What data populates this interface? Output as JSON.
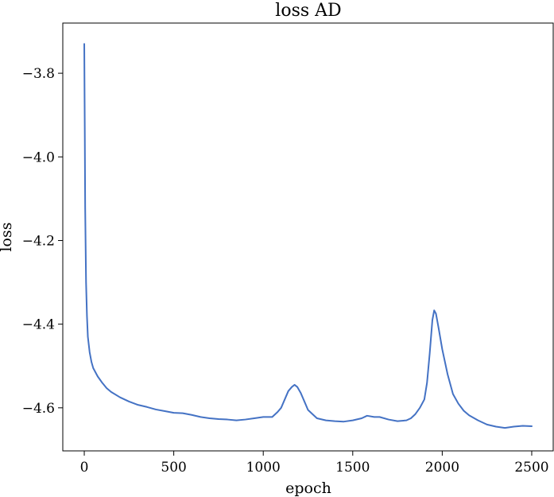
{
  "chart_data": {
    "type": "line",
    "title": "loss AD",
    "xlabel": "epoch",
    "ylabel": "loss",
    "xlim": [
      -120,
      2620
    ],
    "ylim": [
      -4.703,
      -3.68
    ],
    "xticks": [
      0,
      500,
      1000,
      1500,
      2000,
      2500
    ],
    "yticks": [
      -4.6,
      -4.4,
      -4.2,
      -4.0,
      -3.8
    ],
    "xtick_labels": [
      "0",
      "500",
      "1000",
      "1500",
      "2000",
      "2500"
    ],
    "ytick_labels": [
      "−4.6",
      "−4.4",
      "−4.2",
      "−4.0",
      "−3.8"
    ],
    "grid": false,
    "series": [
      {
        "color": "#4472c4",
        "points": [
          [
            0,
            -3.73
          ],
          [
            3,
            -3.95
          ],
          [
            5,
            -4.12
          ],
          [
            10,
            -4.3
          ],
          [
            15,
            -4.38
          ],
          [
            20,
            -4.43
          ],
          [
            30,
            -4.467
          ],
          [
            40,
            -4.49
          ],
          [
            50,
            -4.505
          ],
          [
            75,
            -4.525
          ],
          [
            100,
            -4.54
          ],
          [
            125,
            -4.553
          ],
          [
            150,
            -4.562
          ],
          [
            200,
            -4.575
          ],
          [
            250,
            -4.585
          ],
          [
            300,
            -4.593
          ],
          [
            350,
            -4.598
          ],
          [
            400,
            -4.604
          ],
          [
            450,
            -4.608
          ],
          [
            500,
            -4.612
          ],
          [
            550,
            -4.613
          ],
          [
            600,
            -4.617
          ],
          [
            650,
            -4.622
          ],
          [
            700,
            -4.625
          ],
          [
            750,
            -4.627
          ],
          [
            800,
            -4.628
          ],
          [
            850,
            -4.63
          ],
          [
            900,
            -4.628
          ],
          [
            950,
            -4.625
          ],
          [
            1000,
            -4.622
          ],
          [
            1050,
            -4.622
          ],
          [
            1080,
            -4.61
          ],
          [
            1100,
            -4.6
          ],
          [
            1120,
            -4.58
          ],
          [
            1140,
            -4.56
          ],
          [
            1160,
            -4.55
          ],
          [
            1175,
            -4.545
          ],
          [
            1190,
            -4.55
          ],
          [
            1210,
            -4.565
          ],
          [
            1230,
            -4.585
          ],
          [
            1250,
            -4.605
          ],
          [
            1275,
            -4.615
          ],
          [
            1300,
            -4.625
          ],
          [
            1350,
            -4.63
          ],
          [
            1400,
            -4.632
          ],
          [
            1450,
            -4.633
          ],
          [
            1500,
            -4.63
          ],
          [
            1550,
            -4.625
          ],
          [
            1580,
            -4.619
          ],
          [
            1620,
            -4.622
          ],
          [
            1650,
            -4.622
          ],
          [
            1700,
            -4.628
          ],
          [
            1750,
            -4.632
          ],
          [
            1800,
            -4.63
          ],
          [
            1825,
            -4.625
          ],
          [
            1850,
            -4.615
          ],
          [
            1875,
            -4.6
          ],
          [
            1900,
            -4.58
          ],
          [
            1915,
            -4.54
          ],
          [
            1930,
            -4.47
          ],
          [
            1945,
            -4.39
          ],
          [
            1955,
            -4.367
          ],
          [
            1965,
            -4.375
          ],
          [
            1980,
            -4.41
          ],
          [
            2000,
            -4.46
          ],
          [
            2030,
            -4.52
          ],
          [
            2060,
            -4.567
          ],
          [
            2090,
            -4.59
          ],
          [
            2120,
            -4.607
          ],
          [
            2150,
            -4.618
          ],
          [
            2200,
            -4.63
          ],
          [
            2250,
            -4.64
          ],
          [
            2300,
            -4.645
          ],
          [
            2350,
            -4.648
          ],
          [
            2400,
            -4.645
          ],
          [
            2450,
            -4.643
          ],
          [
            2500,
            -4.644
          ]
        ]
      }
    ]
  }
}
